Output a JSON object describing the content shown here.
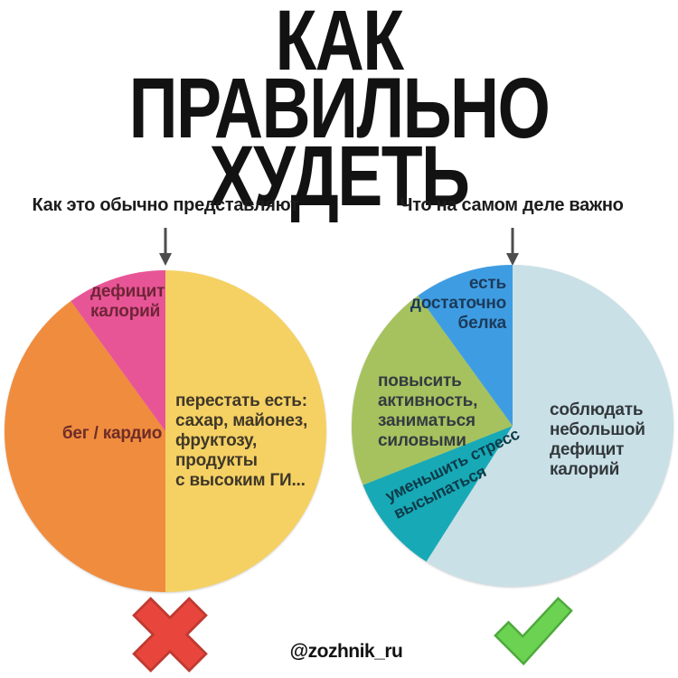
{
  "title": {
    "line1": "КАК ПРАВИЛЬНО",
    "line2": "ХУДЕТЬ"
  },
  "watermark": "@zozhnik_ru",
  "icons": {
    "left_verdict": "red-cross",
    "right_verdict": "green-check",
    "arrow": "down-arrow"
  },
  "colors": {
    "cross_fill": "#e8463c",
    "cross_outline": "#bf3a31",
    "check_fill": "#6cd251",
    "check_outline": "#4da93c",
    "arrow": "#4d4d4d"
  },
  "chart_data": [
    {
      "type": "pie",
      "title": "Как это обычно представляют",
      "legend_position": "none",
      "slices": [
        {
          "name": "stop-eating",
          "label": "перестать есть:\nсахар, майонез,\nфруктозу, продукты\nс высоким ГИ...",
          "value": 50,
          "color": "#f5d164"
        },
        {
          "name": "cardio",
          "label": "бег / кардио",
          "value": 40,
          "color": "#f08c3e"
        },
        {
          "name": "calorie-deficit",
          "label": "дефицит\nкалорий",
          "value": 10,
          "color": "#e85596"
        }
      ]
    },
    {
      "type": "pie",
      "title": "Что на самом деле важно",
      "legend_position": "none",
      "slices": [
        {
          "name": "small-calorie-deficit",
          "label": "соблюдать\nнебольшой\nдефицит\nкалорий",
          "value": 59,
          "color": "#c9e0e7"
        },
        {
          "name": "less-stress-sleep",
          "label": "уменьшить стресс\nвысыпаться",
          "value": 10,
          "color": "#18a9b6"
        },
        {
          "name": "activity-strength",
          "label": "повысить\nактивность,\nзаниматься\nсиловыми",
          "value": 21,
          "color": "#a6c25e"
        },
        {
          "name": "enough-protein",
          "label": "есть\nдостаточно\nбелка",
          "value": 10,
          "color": "#3e9de2"
        }
      ]
    }
  ]
}
